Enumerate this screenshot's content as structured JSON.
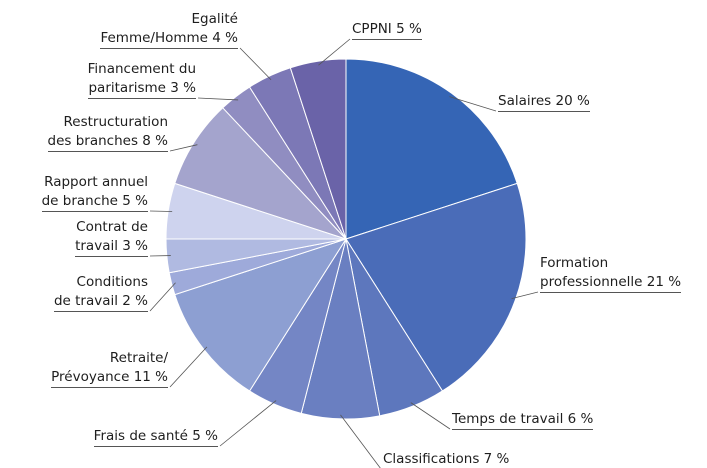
{
  "chart_data": {
    "type": "pie",
    "categories": [
      "Salaires",
      "Formation\nprofessionnelle",
      "Temps de travail",
      "Classifications",
      "Frais de santé",
      "Retraite/\nPrévoyance",
      "Conditions\nde travail",
      "Contrat de\ntravail",
      "Rapport annuel\nde branche",
      "Restructuration\ndes branches",
      "Financement du\nparitarisme",
      "Egalité\nFemme/Homme",
      "CPPNI"
    ],
    "values": [
      20,
      21,
      6,
      7,
      5,
      11,
      2,
      3,
      5,
      8,
      3,
      4,
      5
    ],
    "value_labels": [
      "20 %",
      "21 %",
      "6 %",
      "7 %",
      "5 %",
      "11 %",
      "2 %",
      "3 %",
      "5 %",
      "8 %",
      "3 %",
      "4 %",
      "5 %"
    ],
    "colors": [
      "#3565b5",
      "#4a6cb8",
      "#5d77bd",
      "#6a7fc1",
      "#7486c5",
      "#8d9fd2",
      "#9eaada",
      "#b0bae1",
      "#ced3ee",
      "#a4a4cd",
      "#908dc1",
      "#7c78b6",
      "#6a63a8"
    ]
  }
}
